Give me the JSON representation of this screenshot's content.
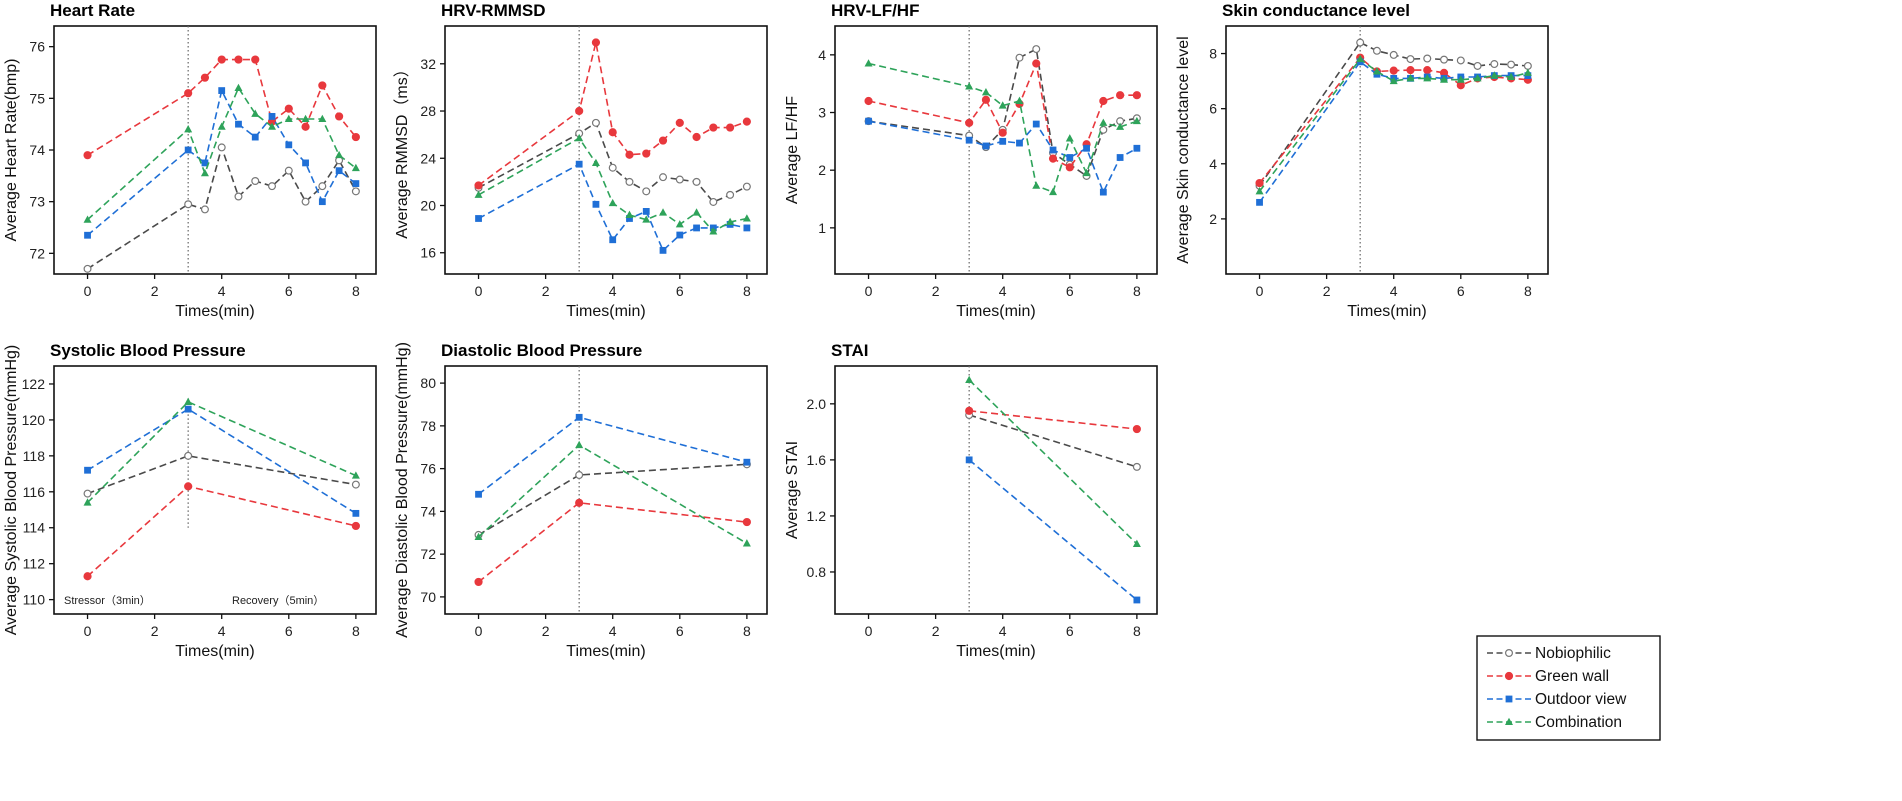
{
  "series_styles": [
    {
      "name": "Nobiophilic",
      "color": "#4a4a4a",
      "marker": "circle-open"
    },
    {
      "name": "Green wall",
      "color": "#e8383d",
      "marker": "circle"
    },
    {
      "name": "Outdoor view",
      "color": "#1f6fd6",
      "marker": "square"
    },
    {
      "name": "Combination",
      "color": "#2ea35a",
      "marker": "triangle"
    }
  ],
  "legend": {
    "items": [
      "Nobiophilic",
      "Green wall",
      "Outdoor view",
      "Combination"
    ]
  },
  "chart_data": [
    {
      "type": "line",
      "title": "Heart Rate",
      "xlabel": "Times(min)",
      "ylabel": "Average Heart Rate(bmp)",
      "xlim": [
        -1,
        8.6
      ],
      "ylim": [
        71.6,
        76.4
      ],
      "xticks": [
        0,
        2,
        4,
        6,
        8
      ],
      "yticks": [
        72,
        73,
        74,
        75,
        76
      ],
      "divider_x": 3,
      "x": [
        0,
        3,
        3.5,
        4,
        4.5,
        5,
        5.5,
        6,
        6.5,
        7,
        7.5,
        8
      ],
      "series": [
        {
          "name": "Nobiophilic",
          "values": [
            71.7,
            72.95,
            72.85,
            74.05,
            73.1,
            73.4,
            73.3,
            73.6,
            73.0,
            73.3,
            73.8,
            73.2
          ]
        },
        {
          "name": "Green wall",
          "values": [
            73.9,
            75.1,
            75.4,
            75.75,
            75.75,
            75.75,
            74.55,
            74.8,
            74.45,
            75.25,
            74.65,
            74.25
          ]
        },
        {
          "name": "Outdoor view",
          "values": [
            72.35,
            74.0,
            73.75,
            75.15,
            74.5,
            74.25,
            74.65,
            74.1,
            73.75,
            73.0,
            73.6,
            73.35
          ]
        },
        {
          "name": "Combination",
          "values": [
            72.65,
            74.4,
            73.55,
            74.45,
            75.2,
            74.7,
            74.45,
            74.6,
            74.6,
            74.6,
            73.9,
            73.65
          ]
        }
      ]
    },
    {
      "type": "line",
      "title": "HRV-RMMSD",
      "xlabel": "Times(min)",
      "ylabel": "Average RMMSD（ms）",
      "xlim": [
        -1,
        8.6
      ],
      "ylim": [
        14.2,
        35.2
      ],
      "xticks": [
        0,
        2,
        4,
        6,
        8
      ],
      "yticks": [
        16,
        20,
        24,
        28,
        32
      ],
      "divider_x": 3,
      "x": [
        0,
        3,
        3.5,
        4,
        4.5,
        5,
        5.5,
        6,
        6.5,
        7,
        7.5,
        8
      ],
      "series": [
        {
          "name": "Nobiophilic",
          "values": [
            21.5,
            26.1,
            27.0,
            23.2,
            22.0,
            21.2,
            22.4,
            22.2,
            22.0,
            20.3,
            20.9,
            21.6
          ]
        },
        {
          "name": "Green wall",
          "values": [
            21.7,
            28.0,
            33.8,
            26.2,
            24.3,
            24.4,
            25.5,
            27.0,
            25.8,
            26.6,
            26.6,
            27.1
          ]
        },
        {
          "name": "Outdoor view",
          "values": [
            18.9,
            23.5,
            20.1,
            17.1,
            18.9,
            19.5,
            16.2,
            17.5,
            18.1,
            18.1,
            18.4,
            18.1
          ]
        },
        {
          "name": "Combination",
          "values": [
            20.9,
            25.7,
            23.6,
            20.2,
            19.2,
            18.8,
            19.4,
            18.4,
            19.4,
            17.8,
            18.6,
            18.9
          ]
        }
      ]
    },
    {
      "type": "line",
      "title": "HRV-LF/HF",
      "xlabel": "Times(min)",
      "ylabel": "Average LF/HF",
      "xlim": [
        -1,
        8.6
      ],
      "ylim": [
        0.2,
        4.5
      ],
      "xticks": [
        0,
        2,
        4,
        6,
        8
      ],
      "yticks": [
        1,
        2,
        3,
        4
      ],
      "divider_x": 3,
      "x": [
        0,
        3,
        3.5,
        4,
        4.5,
        5,
        5.5,
        6,
        6.5,
        7,
        7.5,
        8
      ],
      "series": [
        {
          "name": "Nobiophilic",
          "values": [
            2.85,
            2.6,
            2.4,
            2.7,
            3.95,
            4.1,
            2.3,
            2.1,
            1.9,
            2.7,
            2.85,
            2.9
          ]
        },
        {
          "name": "Green wall",
          "values": [
            3.2,
            2.82,
            3.22,
            2.65,
            3.15,
            3.85,
            2.2,
            2.05,
            2.45,
            3.2,
            3.3,
            3.3
          ]
        },
        {
          "name": "Outdoor view",
          "values": [
            2.85,
            2.52,
            2.42,
            2.5,
            2.47,
            2.8,
            2.35,
            2.22,
            2.38,
            1.62,
            2.22,
            2.38
          ]
        },
        {
          "name": "Combination",
          "values": [
            3.85,
            3.45,
            3.35,
            3.12,
            3.2,
            1.73,
            1.62,
            2.55,
            1.95,
            2.82,
            2.75,
            2.85
          ]
        }
      ]
    },
    {
      "type": "line",
      "title": "Skin conductance level",
      "xlabel": "Times(min)",
      "ylabel": "Average Skin conductance level",
      "xlim": [
        -1,
        8.6
      ],
      "ylim": [
        0,
        9
      ],
      "xticks": [
        0,
        2,
        4,
        6,
        8
      ],
      "yticks": [
        2,
        4,
        6,
        8
      ],
      "divider_x": 3,
      "x": [
        0,
        3,
        3.5,
        4,
        4.5,
        5,
        5.5,
        6,
        6.5,
        7,
        7.5,
        8
      ],
      "series": [
        {
          "name": "Nobiophilic",
          "values": [
            3.2,
            8.4,
            8.1,
            7.95,
            7.8,
            7.82,
            7.78,
            7.75,
            7.55,
            7.62,
            7.6,
            7.55
          ]
        },
        {
          "name": "Green wall",
          "values": [
            3.3,
            7.85,
            7.35,
            7.38,
            7.4,
            7.4,
            7.3,
            6.85,
            7.1,
            7.15,
            7.1,
            7.05
          ]
        },
        {
          "name": "Outdoor view",
          "values": [
            2.6,
            7.7,
            7.25,
            7.1,
            7.1,
            7.15,
            7.1,
            7.15,
            7.15,
            7.2,
            7.2,
            7.2
          ]
        },
        {
          "name": "Combination",
          "values": [
            3.0,
            7.8,
            7.35,
            7.0,
            7.1,
            7.1,
            7.05,
            7.05,
            7.1,
            7.2,
            7.15,
            7.3
          ]
        }
      ]
    },
    {
      "type": "line",
      "title": "Systolic Blood Pressure",
      "xlabel": "Times(min)",
      "ylabel": "Average Systolic Blood Pressure(mmHg)",
      "xlim": [
        -1,
        8.6
      ],
      "ylim": [
        109.2,
        123.0
      ],
      "xticks": [
        0,
        2,
        4,
        6,
        8
      ],
      "yticks": [
        110,
        112,
        114,
        116,
        118,
        120,
        122
      ],
      "divider_x": 3,
      "divider_ylim": [
        114,
        121.2
      ],
      "annotations": [
        "Stressor（3min）",
        "Recovery（5min）"
      ],
      "x": [
        0,
        3,
        8
      ],
      "series": [
        {
          "name": "Nobiophilic",
          "values": [
            115.9,
            118.0,
            116.4
          ]
        },
        {
          "name": "Green wall",
          "values": [
            111.3,
            116.3,
            114.1
          ]
        },
        {
          "name": "Outdoor view",
          "values": [
            117.2,
            120.6,
            114.8
          ]
        },
        {
          "name": "Combination",
          "values": [
            115.4,
            121.0,
            116.9
          ]
        }
      ]
    },
    {
      "type": "line",
      "title": "Diastolic Blood Pressure",
      "xlabel": "Times(min)",
      "ylabel": "Average Diastolic Blood Pressure(mmHg)",
      "xlim": [
        -1,
        8.6
      ],
      "ylim": [
        69.2,
        80.8
      ],
      "xticks": [
        0,
        2,
        4,
        6,
        8
      ],
      "yticks": [
        70,
        72,
        74,
        76,
        78,
        80
      ],
      "divider_x": 3,
      "x": [
        0,
        3,
        8
      ],
      "series": [
        {
          "name": "Nobiophilic",
          "values": [
            72.9,
            75.7,
            76.2
          ]
        },
        {
          "name": "Green wall",
          "values": [
            70.7,
            74.4,
            73.5
          ]
        },
        {
          "name": "Outdoor view",
          "values": [
            74.8,
            78.4,
            76.3
          ]
        },
        {
          "name": "Combination",
          "values": [
            72.8,
            77.1,
            72.5
          ]
        }
      ]
    },
    {
      "type": "line",
      "title": "STAI",
      "xlabel": "Times(min)",
      "ylabel": "Average STAI",
      "xlim": [
        -1,
        8.6
      ],
      "ylim": [
        0.5,
        2.27
      ],
      "xticks": [
        0,
        2,
        4,
        6,
        8
      ],
      "yticks": [
        0.8,
        1.2,
        1.6,
        2.0
      ],
      "ytick_labels": [
        "0.8",
        "1.2",
        "1.6",
        "2.0"
      ],
      "divider_x": 3,
      "x": [
        3,
        8
      ],
      "series": [
        {
          "name": "Nobiophilic",
          "values": [
            1.92,
            1.55
          ]
        },
        {
          "name": "Green wall",
          "values": [
            1.95,
            1.82
          ]
        },
        {
          "name": "Outdoor view",
          "values": [
            1.6,
            0.6
          ]
        },
        {
          "name": "Combination",
          "values": [
            2.17,
            1.0
          ]
        }
      ]
    }
  ]
}
